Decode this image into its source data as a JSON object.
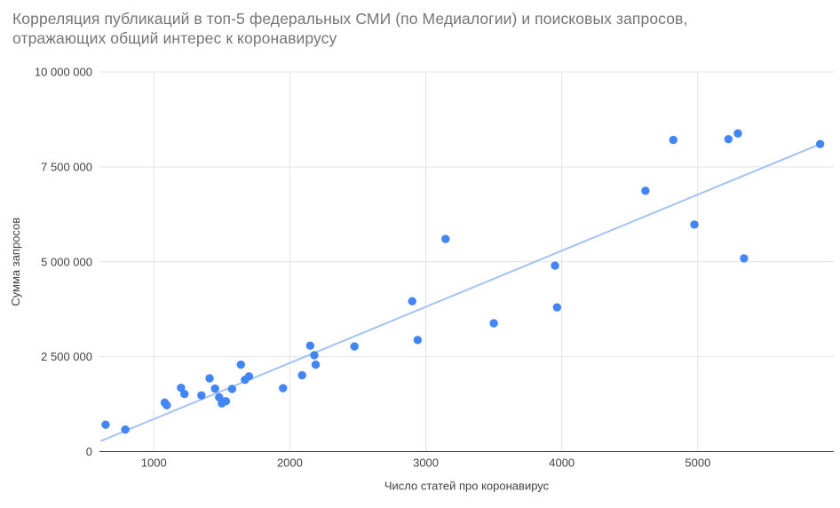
{
  "title": {
    "lines": [
      "Корреляция публикаций в топ-5 федеральных СМИ (по Медиалогии) и поисковых запросов,",
      "отражающих общий интерес к коронавирусу"
    ],
    "color": "#757575"
  },
  "chart_data": {
    "type": "scatter",
    "title": "Корреляция публикаций в топ-5 федеральных СМИ (по Медиалогии) и поисковых запросов, отражающих общий интерес к коронавирусу",
    "xlabel": "Число статей про коронавирус",
    "ylabel": "Сумма запросов",
    "xlim": [
      600,
      6000
    ],
    "ylim": [
      0,
      10000000
    ],
    "grid": true,
    "legend": "none",
    "x_ticks": [
      {
        "value": 1000,
        "label": "1000"
      },
      {
        "value": 2000,
        "label": "2000"
      },
      {
        "value": 3000,
        "label": "3000"
      },
      {
        "value": 4000,
        "label": "4000"
      },
      {
        "value": 5000,
        "label": "5000"
      }
    ],
    "y_ticks": [
      {
        "value": 0,
        "label": "0"
      },
      {
        "value": 2500000,
        "label": "2 500 000"
      },
      {
        "value": 5000000,
        "label": "5 000 000"
      },
      {
        "value": 7500000,
        "label": "7 500 000"
      },
      {
        "value": 10000000,
        "label": "10 000 000"
      }
    ],
    "series": [
      {
        "name": "Сумма запросов",
        "points": [
          [
            645,
            710000
          ],
          [
            790,
            580000
          ],
          [
            1080,
            1290000
          ],
          [
            1095,
            1220000
          ],
          [
            1200,
            1680000
          ],
          [
            1225,
            1520000
          ],
          [
            1350,
            1480000
          ],
          [
            1410,
            1930000
          ],
          [
            1450,
            1660000
          ],
          [
            1480,
            1430000
          ],
          [
            1500,
            1270000
          ],
          [
            1530,
            1330000
          ],
          [
            1575,
            1650000
          ],
          [
            1640,
            2290000
          ],
          [
            1670,
            1890000
          ],
          [
            1700,
            1980000
          ],
          [
            1950,
            1670000
          ],
          [
            2090,
            2010000
          ],
          [
            2150,
            2790000
          ],
          [
            2180,
            2540000
          ],
          [
            2190,
            2290000
          ],
          [
            2475,
            2770000
          ],
          [
            2900,
            3960000
          ],
          [
            2940,
            2940000
          ],
          [
            3145,
            5600000
          ],
          [
            3500,
            3380000
          ],
          [
            3950,
            4900000
          ],
          [
            3965,
            3800000
          ],
          [
            4615,
            6870000
          ],
          [
            4820,
            8210000
          ],
          [
            4975,
            5980000
          ],
          [
            5225,
            8230000
          ],
          [
            5295,
            8380000
          ],
          [
            5340,
            5090000
          ],
          [
            5900,
            8100000
          ]
        ]
      }
    ],
    "trendline": {
      "x1": 610,
      "y1": 280000,
      "x2": 5900,
      "y2": 8100000
    },
    "colors": {
      "point": "#4285F4",
      "trendline": "#A4C2F4",
      "gridline": "#E3E3E3",
      "axis_line": "#333333",
      "tick_label": "#424242",
      "axis_title": "#424242"
    }
  }
}
